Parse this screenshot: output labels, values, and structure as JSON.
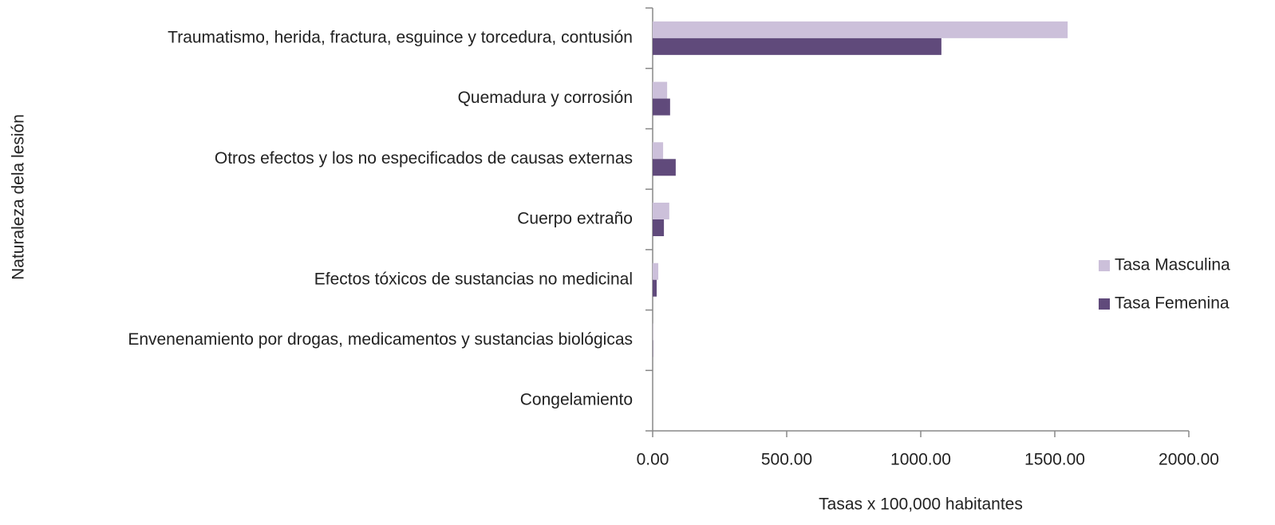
{
  "chart_data": {
    "type": "bar",
    "orientation": "horizontal",
    "x_label": "Tasas x 100,000 habitantes",
    "y_label": "Naturaleza dela lesión",
    "categories": [
      "Traumatismo, herida, fractura, esguince y torcedura, contusión",
      "Quemadura y corrosión",
      "Otros efectos y los no especificados de causas externas",
      "Cuerpo extraño",
      "Efectos tóxicos de sustancias no medicinal",
      "Envenenamiento por drogas, medicamentos y sustancias biológicas",
      "Congelamiento"
    ],
    "series": [
      {
        "name": "Tasa Masculina",
        "color": "#ccc0da",
        "values": [
          1548,
          54,
          39,
          62,
          21,
          1,
          0
        ]
      },
      {
        "name": "Tasa Femenina",
        "color": "#604a7b",
        "values": [
          1077,
          65,
          86,
          42,
          15,
          1,
          0
        ]
      }
    ],
    "xlim": [
      0,
      2000
    ],
    "xticks": [
      {
        "value": 0,
        "label": "0.00"
      },
      {
        "value": 500,
        "label": "500.00"
      },
      {
        "value": 1000,
        "label": "1000.00"
      },
      {
        "value": 1500,
        "label": "1500.00"
      },
      {
        "value": 2000,
        "label": "2000.00"
      }
    ],
    "legend": "right",
    "grid": false
  }
}
